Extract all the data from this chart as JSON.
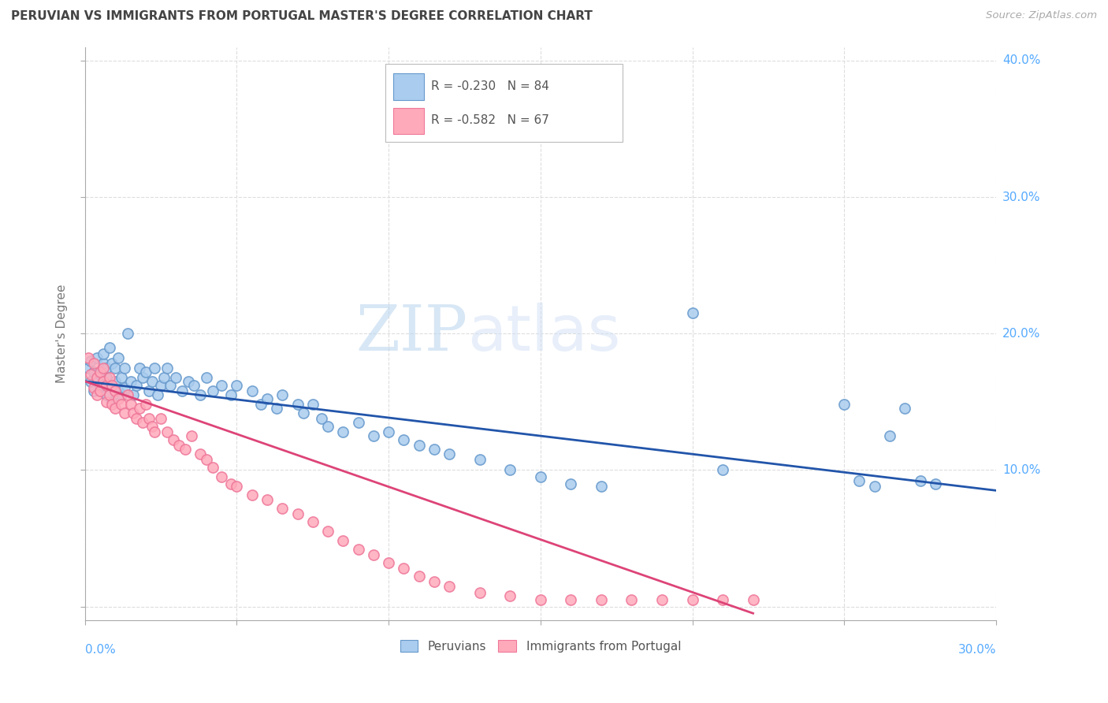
{
  "title": "PERUVIAN VS IMMIGRANTS FROM PORTUGAL MASTER'S DEGREE CORRELATION CHART",
  "source": "Source: ZipAtlas.com",
  "ylabel": "Master's Degree",
  "xlim": [
    0.0,
    0.3
  ],
  "ylim": [
    -0.01,
    0.41
  ],
  "series1_label": "Peruvians",
  "series1_R": -0.23,
  "series1_N": 84,
  "series1_color": "#aaccee",
  "series1_edge_color": "#6699cc",
  "series1_line_color": "#2255aa",
  "series2_label": "Immigrants from Portugal",
  "series2_R": -0.582,
  "series2_N": 67,
  "series2_color": "#ffaabb",
  "series2_edge_color": "#ee7799",
  "series2_line_color": "#dd4477",
  "watermark_zip": "ZIP",
  "watermark_atlas": "atlas",
  "watermark_color": "#ccddf0",
  "background_color": "#ffffff",
  "grid_color": "#dddddd",
  "title_color": "#444444",
  "axis_tick_color": "#55aaff",
  "ylabel_color": "#777777",
  "legend_text_color": "#555555",
  "peruvian_x": [
    0.001,
    0.002,
    0.002,
    0.003,
    0.003,
    0.004,
    0.004,
    0.005,
    0.005,
    0.006,
    0.006,
    0.006,
    0.007,
    0.007,
    0.007,
    0.008,
    0.008,
    0.009,
    0.009,
    0.01,
    0.01,
    0.011,
    0.011,
    0.012,
    0.012,
    0.013,
    0.013,
    0.014,
    0.015,
    0.016,
    0.017,
    0.018,
    0.019,
    0.02,
    0.021,
    0.022,
    0.023,
    0.024,
    0.025,
    0.026,
    0.027,
    0.028,
    0.03,
    0.032,
    0.034,
    0.036,
    0.038,
    0.04,
    0.042,
    0.045,
    0.048,
    0.05,
    0.055,
    0.058,
    0.06,
    0.063,
    0.065,
    0.07,
    0.072,
    0.075,
    0.078,
    0.08,
    0.085,
    0.09,
    0.095,
    0.1,
    0.105,
    0.11,
    0.115,
    0.12,
    0.13,
    0.14,
    0.15,
    0.16,
    0.17,
    0.2,
    0.21,
    0.25,
    0.255,
    0.26,
    0.265,
    0.27,
    0.275,
    0.28
  ],
  "peruvian_y": [
    0.175,
    0.18,
    0.165,
    0.172,
    0.158,
    0.168,
    0.182,
    0.17,
    0.16,
    0.178,
    0.185,
    0.162,
    0.175,
    0.168,
    0.155,
    0.19,
    0.162,
    0.178,
    0.15,
    0.165,
    0.175,
    0.158,
    0.182,
    0.168,
    0.155,
    0.175,
    0.16,
    0.2,
    0.165,
    0.155,
    0.162,
    0.175,
    0.168,
    0.172,
    0.158,
    0.165,
    0.175,
    0.155,
    0.162,
    0.168,
    0.175,
    0.162,
    0.168,
    0.158,
    0.165,
    0.162,
    0.155,
    0.168,
    0.158,
    0.162,
    0.155,
    0.162,
    0.158,
    0.148,
    0.152,
    0.145,
    0.155,
    0.148,
    0.142,
    0.148,
    0.138,
    0.132,
    0.128,
    0.135,
    0.125,
    0.128,
    0.122,
    0.118,
    0.115,
    0.112,
    0.108,
    0.1,
    0.095,
    0.09,
    0.088,
    0.215,
    0.1,
    0.148,
    0.092,
    0.088,
    0.125,
    0.145,
    0.092,
    0.09
  ],
  "portugal_x": [
    0.001,
    0.002,
    0.003,
    0.003,
    0.004,
    0.004,
    0.005,
    0.005,
    0.006,
    0.006,
    0.007,
    0.007,
    0.008,
    0.008,
    0.009,
    0.009,
    0.01,
    0.01,
    0.011,
    0.012,
    0.013,
    0.014,
    0.015,
    0.016,
    0.017,
    0.018,
    0.019,
    0.02,
    0.021,
    0.022,
    0.023,
    0.025,
    0.027,
    0.029,
    0.031,
    0.033,
    0.035,
    0.038,
    0.04,
    0.042,
    0.045,
    0.048,
    0.05,
    0.055,
    0.06,
    0.065,
    0.07,
    0.075,
    0.08,
    0.085,
    0.09,
    0.095,
    0.1,
    0.105,
    0.11,
    0.115,
    0.12,
    0.13,
    0.14,
    0.15,
    0.16,
    0.17,
    0.18,
    0.19,
    0.2,
    0.21,
    0.22
  ],
  "portugal_y": [
    0.182,
    0.17,
    0.178,
    0.16,
    0.168,
    0.155,
    0.172,
    0.158,
    0.165,
    0.175,
    0.162,
    0.15,
    0.168,
    0.155,
    0.162,
    0.148,
    0.158,
    0.145,
    0.152,
    0.148,
    0.142,
    0.155,
    0.148,
    0.142,
    0.138,
    0.145,
    0.135,
    0.148,
    0.138,
    0.132,
    0.128,
    0.138,
    0.128,
    0.122,
    0.118,
    0.115,
    0.125,
    0.112,
    0.108,
    0.102,
    0.095,
    0.09,
    0.088,
    0.082,
    0.078,
    0.072,
    0.068,
    0.062,
    0.055,
    0.048,
    0.042,
    0.038,
    0.032,
    0.028,
    0.022,
    0.018,
    0.015,
    0.01,
    0.008,
    0.005,
    0.005,
    0.005,
    0.005,
    0.005,
    0.005,
    0.005,
    0.005
  ],
  "ytick_vals": [
    0.0,
    0.1,
    0.2,
    0.3,
    0.4
  ],
  "ytick_labels": [
    "",
    "10.0%",
    "20.0%",
    "30.0%",
    "40.0%"
  ],
  "xtick_vals": [
    0.0,
    0.05,
    0.1,
    0.15,
    0.2,
    0.25,
    0.3
  ],
  "line1_x_start": 0.0,
  "line1_x_end": 0.3,
  "line1_y_start": 0.165,
  "line1_y_end": 0.085,
  "line2_x_start": 0.0,
  "line2_x_end": 0.22,
  "line2_y_start": 0.165,
  "line2_y_end": -0.005
}
